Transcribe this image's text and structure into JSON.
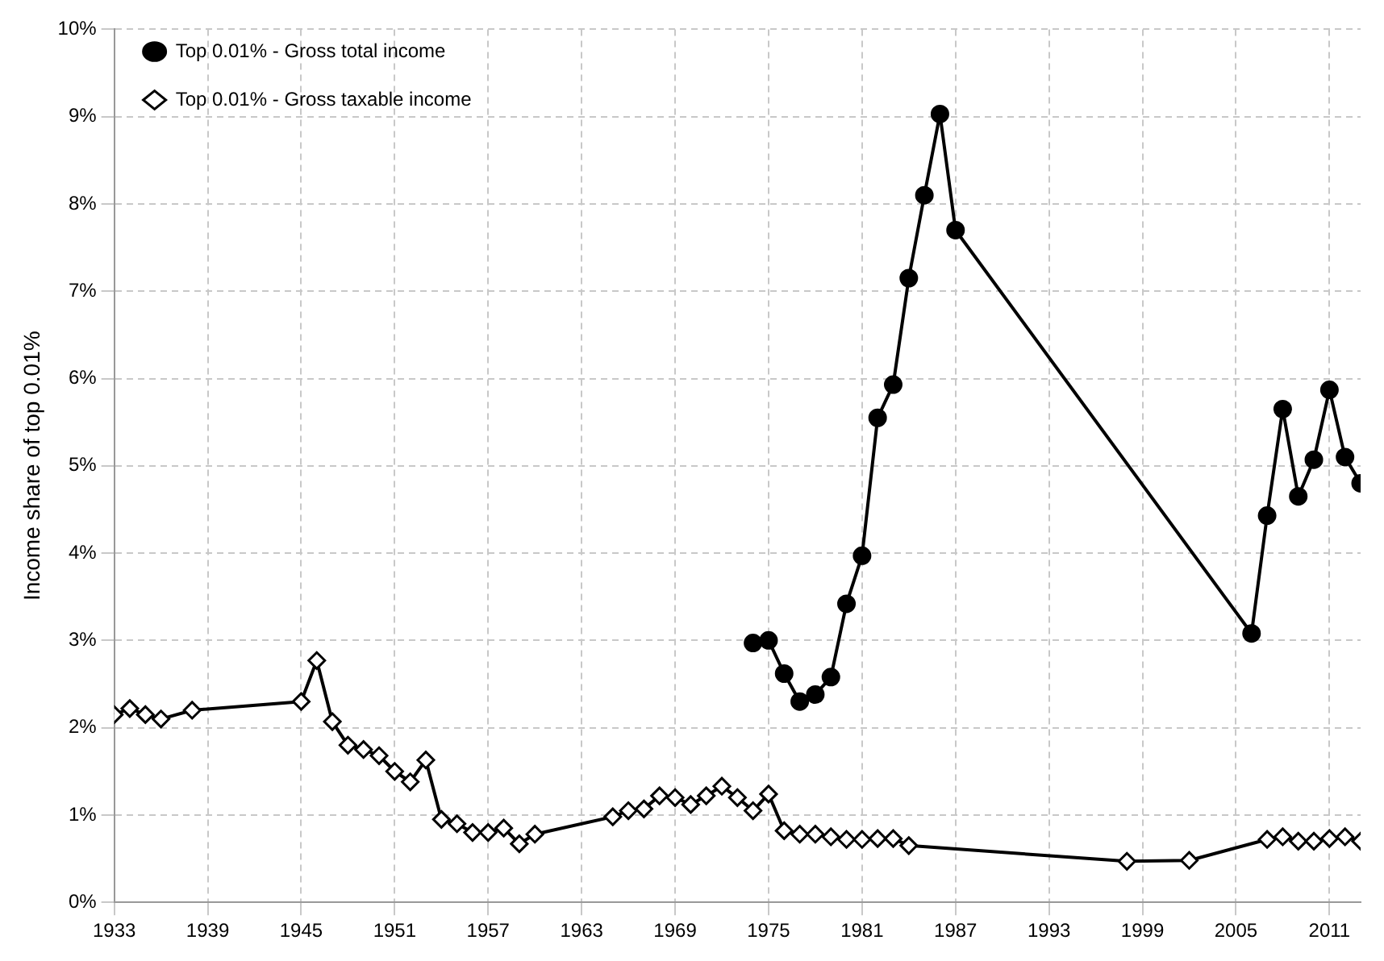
{
  "chart_data": {
    "type": "line",
    "ylabel": "Income share of top 0.01%",
    "xlim": [
      1933,
      2013
    ],
    "xticks": [
      1933,
      1939,
      1945,
      1951,
      1957,
      1963,
      1969,
      1975,
      1981,
      1987,
      1993,
      1999,
      2005,
      2011
    ],
    "ylim": [
      0,
      10
    ],
    "yticks": [
      {
        "value": 0,
        "label": "0%"
      },
      {
        "value": 1,
        "label": "1%"
      },
      {
        "value": 2,
        "label": "2%"
      },
      {
        "value": 3,
        "label": "3%"
      },
      {
        "value": 4,
        "label": "4%"
      },
      {
        "value": 5,
        "label": "5%"
      },
      {
        "value": 6,
        "label": "6%"
      },
      {
        "value": 7,
        "label": "7%"
      },
      {
        "value": 8,
        "label": "8%"
      },
      {
        "value": 9,
        "label": "9%"
      },
      {
        "value": 10,
        "label": "10%"
      }
    ],
    "grid": true,
    "legend": "top left",
    "line_style": "solid",
    "series": [
      {
        "name": "Top 0.01% - Gross total income",
        "color": "#000000",
        "marker": "circle",
        "x": [
          1974,
          1975,
          1976,
          1977,
          1978,
          1979,
          1980,
          1981,
          1982,
          1983,
          1984,
          1985,
          1986,
          1987,
          2006,
          2007,
          2008,
          2009,
          2010,
          2011,
          2012,
          2013
        ],
        "values": [
          2.97,
          3.0,
          2.62,
          2.3,
          2.38,
          2.58,
          3.42,
          3.97,
          5.55,
          5.93,
          7.15,
          8.1,
          9.03,
          7.7,
          3.08,
          4.43,
          5.65,
          4.65,
          5.07,
          5.87,
          5.1,
          4.8
        ]
      },
      {
        "name": "Top 0.01% - Gross taxable income",
        "color": "#000000",
        "marker": "diamond",
        "x": [
          1933,
          1934,
          1935,
          1936,
          1938,
          1945,
          1946,
          1947,
          1948,
          1949,
          1950,
          1951,
          1952,
          1953,
          1954,
          1955,
          1956,
          1957,
          1958,
          1959,
          1960,
          1965,
          1966,
          1967,
          1968,
          1969,
          1970,
          1971,
          1972,
          1973,
          1974,
          1975,
          1976,
          1977,
          1978,
          1979,
          1980,
          1981,
          1982,
          1983,
          1984,
          1998,
          2002,
          2007,
          2008,
          2009,
          2010,
          2011,
          2012,
          2013
        ],
        "values": [
          2.15,
          2.22,
          2.15,
          2.1,
          2.2,
          2.3,
          2.77,
          2.07,
          1.8,
          1.75,
          1.68,
          1.5,
          1.38,
          1.63,
          0.95,
          0.9,
          0.8,
          0.8,
          0.85,
          0.67,
          0.78,
          0.98,
          1.05,
          1.07,
          1.22,
          1.2,
          1.12,
          1.22,
          1.33,
          1.2,
          1.05,
          1.24,
          0.82,
          0.78,
          0.78,
          0.75,
          0.72,
          0.72,
          0.73,
          0.73,
          0.65,
          0.47,
          0.48,
          0.72,
          0.75,
          0.7,
          0.7,
          0.73,
          0.75,
          0.7
        ]
      }
    ]
  }
}
